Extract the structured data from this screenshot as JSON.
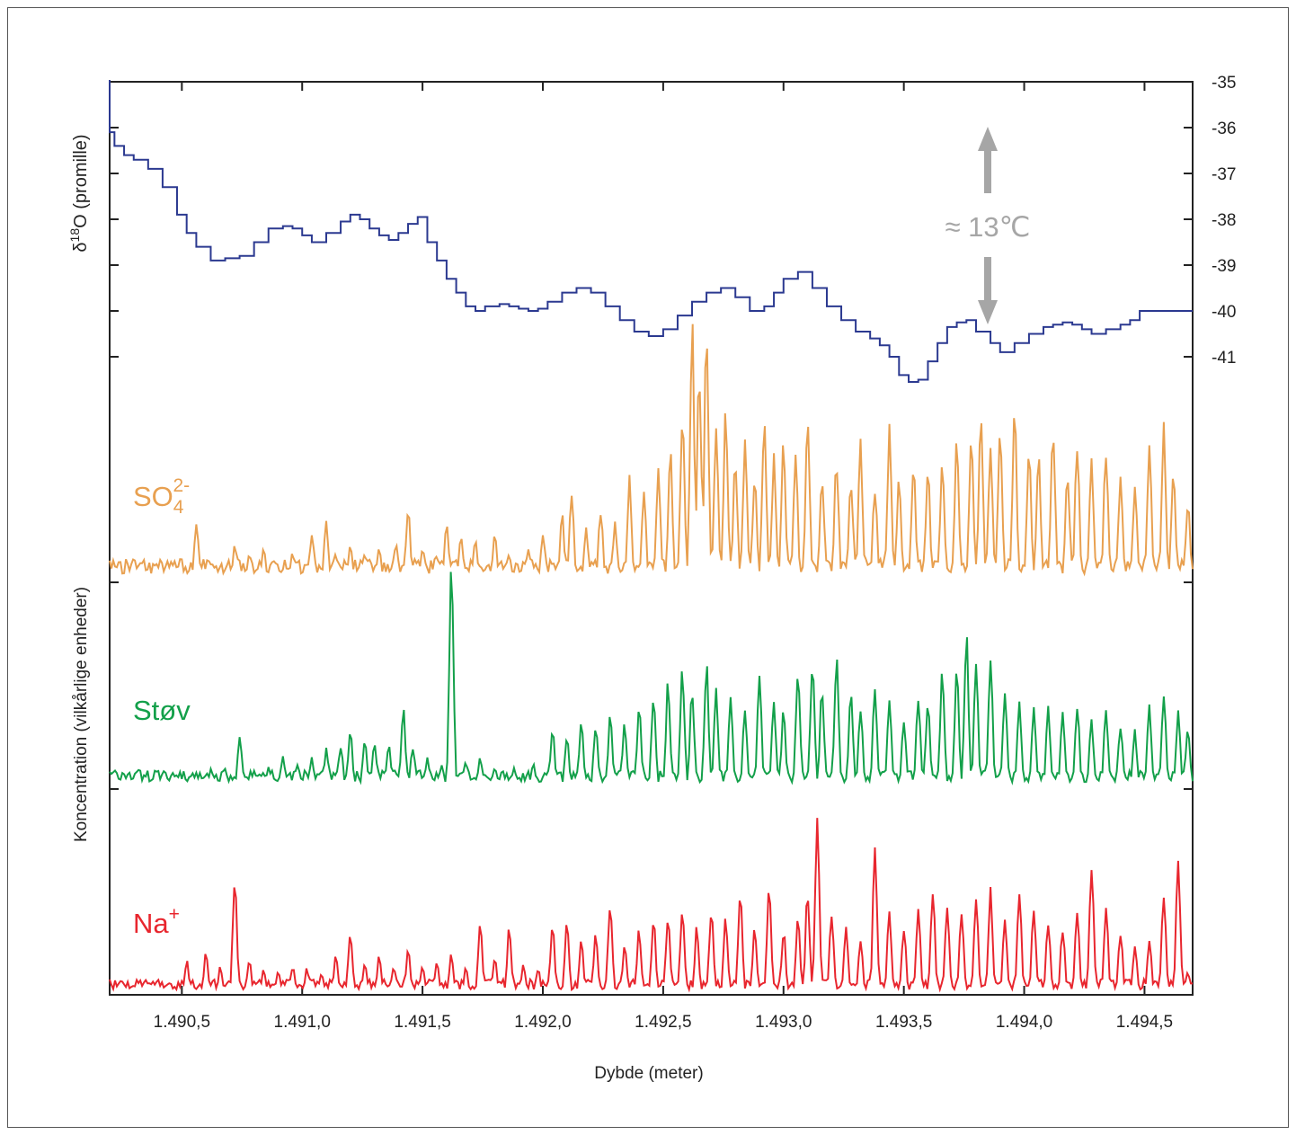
{
  "chart_data": {
    "type": "line",
    "xlabel": "Dybde (meter)",
    "xlim": [
      1490.2,
      1494.7
    ],
    "x_ticks": [
      1490.5,
      1491.0,
      1491.5,
      1492.0,
      1492.5,
      1493.0,
      1493.5,
      1494.0,
      1494.5
    ],
    "x_tick_labels": [
      "1.490,5",
      "1.491,0",
      "1.491,5",
      "1.492,0",
      "1.492,5",
      "1.493,0",
      "1.493,5",
      "1.494,0",
      "1.494,5"
    ],
    "delta_axis": {
      "label_prefix": "δ",
      "label_sup": "18",
      "label_suffix": "O (promille)",
      "ylim": [
        -41,
        -35
      ],
      "ticks": [
        -35,
        -36,
        -37,
        -38,
        -39,
        -40,
        -41
      ],
      "tick_labels": [
        "-35",
        "-36",
        "-37",
        "-38",
        "-39",
        "-40",
        "-41"
      ]
    },
    "concentration_axis": {
      "label": "Koncentration (vilkårlige enheder)"
    },
    "annotation": {
      "text": "≈ 13℃",
      "color": "#a6a6a6"
    },
    "series": [
      {
        "name": "delta18O",
        "color": "#2b3990",
        "kind": "step",
        "x": [
          1490.2,
          1490.22,
          1490.26,
          1490.3,
          1490.36,
          1490.42,
          1490.48,
          1490.52,
          1490.56,
          1490.62,
          1490.68,
          1490.74,
          1490.8,
          1490.86,
          1490.92,
          1490.96,
          1491.0,
          1491.04,
          1491.1,
          1491.16,
          1491.2,
          1491.24,
          1491.28,
          1491.32,
          1491.36,
          1491.4,
          1491.44,
          1491.48,
          1491.52,
          1491.56,
          1491.6,
          1491.64,
          1491.68,
          1491.72,
          1491.76,
          1491.82,
          1491.86,
          1491.9,
          1491.94,
          1491.98,
          1492.02,
          1492.08,
          1492.14,
          1492.2,
          1492.26,
          1492.32,
          1492.38,
          1492.44,
          1492.5,
          1492.56,
          1492.62,
          1492.68,
          1492.74,
          1492.8,
          1492.86,
          1492.92,
          1492.96,
          1493.0,
          1493.06,
          1493.12,
          1493.18,
          1493.24,
          1493.3,
          1493.36,
          1493.4,
          1493.44,
          1493.48,
          1493.52,
          1493.56,
          1493.6,
          1493.64,
          1493.68,
          1493.72,
          1493.76,
          1493.8,
          1493.86,
          1493.9,
          1493.96,
          1494.02,
          1494.08,
          1494.12,
          1494.16,
          1494.2,
          1494.24,
          1494.28,
          1494.34,
          1494.4,
          1494.44,
          1494.48,
          1494.52,
          1494.56,
          1494.6,
          1494.64
        ],
        "y": [
          -36.1,
          -36.4,
          -36.6,
          -36.7,
          -36.9,
          -37.3,
          -37.9,
          -38.3,
          -38.6,
          -38.9,
          -38.85,
          -38.8,
          -38.5,
          -38.2,
          -38.15,
          -38.2,
          -38.35,
          -38.5,
          -38.3,
          -38.05,
          -37.9,
          -38.0,
          -38.2,
          -38.35,
          -38.45,
          -38.3,
          -38.1,
          -37.95,
          -38.5,
          -38.9,
          -39.3,
          -39.6,
          -39.9,
          -40.0,
          -39.9,
          -39.85,
          -39.9,
          -39.95,
          -40.0,
          -39.95,
          -39.8,
          -39.6,
          -39.5,
          -39.6,
          -39.9,
          -40.2,
          -40.45,
          -40.55,
          -40.4,
          -40.1,
          -39.8,
          -39.6,
          -39.5,
          -39.7,
          -40.0,
          -39.9,
          -39.6,
          -39.3,
          -39.15,
          -39.5,
          -39.9,
          -40.2,
          -40.45,
          -40.6,
          -40.75,
          -41.0,
          -41.4,
          -41.55,
          -41.5,
          -41.1,
          -40.7,
          -40.35,
          -40.25,
          -40.2,
          -40.45,
          -40.7,
          -40.9,
          -40.7,
          -40.5,
          -40.35,
          -40.3,
          -40.25,
          -40.3,
          -40.4,
          -40.5,
          -40.4,
          -40.3,
          -40.2,
          -40.0,
          -40.0,
          -40.0,
          -40.0,
          -40.0
        ]
      },
      {
        "name": "SO",
        "label_sub": "4",
        "label_sup": "2-",
        "color": "#e8a050",
        "kind": "line",
        "peaks": [
          [
            1490.2,
            0.08
          ],
          [
            1490.24,
            0.03
          ],
          [
            1490.29,
            0.06
          ],
          [
            1490.33,
            0.04
          ],
          [
            1490.4,
            0.05
          ],
          [
            1490.47,
            0.04
          ],
          [
            1490.56,
            0.22
          ],
          [
            1490.64,
            0.06
          ],
          [
            1490.72,
            0.13
          ],
          [
            1490.78,
            0.1
          ],
          [
            1490.84,
            0.12
          ],
          [
            1490.88,
            0.08
          ],
          [
            1490.96,
            0.11
          ],
          [
            1491.04,
            0.18
          ],
          [
            1491.1,
            0.22
          ],
          [
            1491.14,
            0.1
          ],
          [
            1491.2,
            0.14
          ],
          [
            1491.26,
            0.1
          ],
          [
            1491.32,
            0.12
          ],
          [
            1491.39,
            0.15
          ],
          [
            1491.44,
            0.28
          ],
          [
            1491.5,
            0.12
          ],
          [
            1491.56,
            0.1
          ],
          [
            1491.6,
            0.22
          ],
          [
            1491.66,
            0.18
          ],
          [
            1491.72,
            0.15
          ],
          [
            1491.8,
            0.17
          ],
          [
            1491.86,
            0.1
          ],
          [
            1491.94,
            0.12
          ],
          [
            1492.0,
            0.18
          ],
          [
            1492.08,
            0.25
          ],
          [
            1492.12,
            0.33
          ],
          [
            1492.18,
            0.2
          ],
          [
            1492.24,
            0.27
          ],
          [
            1492.3,
            0.21
          ],
          [
            1492.36,
            0.38
          ],
          [
            1492.42,
            0.32
          ],
          [
            1492.48,
            0.42
          ],
          [
            1492.53,
            0.48
          ],
          [
            1492.58,
            0.62
          ],
          [
            1492.62,
            0.94
          ],
          [
            1492.65,
            0.78
          ],
          [
            1492.68,
            0.88
          ],
          [
            1492.72,
            0.55
          ],
          [
            1492.76,
            0.62
          ],
          [
            1492.8,
            0.46
          ],
          [
            1492.84,
            0.52
          ],
          [
            1492.88,
            0.4
          ],
          [
            1492.92,
            0.62
          ],
          [
            1492.96,
            0.45
          ],
          [
            1493.0,
            0.52
          ],
          [
            1493.05,
            0.48
          ],
          [
            1493.1,
            0.6
          ],
          [
            1493.16,
            0.4
          ],
          [
            1493.22,
            0.45
          ],
          [
            1493.28,
            0.38
          ],
          [
            1493.32,
            0.5
          ],
          [
            1493.38,
            0.35
          ],
          [
            1493.44,
            0.55
          ],
          [
            1493.48,
            0.38
          ],
          [
            1493.54,
            0.45
          ],
          [
            1493.6,
            0.4
          ],
          [
            1493.66,
            0.42
          ],
          [
            1493.72,
            0.5
          ],
          [
            1493.78,
            0.52
          ],
          [
            1493.82,
            0.6
          ],
          [
            1493.86,
            0.48
          ],
          [
            1493.9,
            0.55
          ],
          [
            1493.96,
            0.62
          ],
          [
            1494.02,
            0.5
          ],
          [
            1494.06,
            0.45
          ],
          [
            1494.12,
            0.56
          ],
          [
            1494.18,
            0.4
          ],
          [
            1494.22,
            0.52
          ],
          [
            1494.28,
            0.45
          ],
          [
            1494.34,
            0.5
          ],
          [
            1494.4,
            0.4
          ],
          [
            1494.46,
            0.35
          ],
          [
            1494.52,
            0.48
          ],
          [
            1494.58,
            0.56
          ],
          [
            1494.62,
            0.4
          ],
          [
            1494.68,
            0.3
          ]
        ]
      },
      {
        "name": "Støv",
        "color": "#13a04a",
        "kind": "line",
        "peaks": [
          [
            1490.2,
            0.08
          ],
          [
            1490.26,
            0.07
          ],
          [
            1490.32,
            0.09
          ],
          [
            1490.4,
            0.06
          ],
          [
            1490.48,
            0.07
          ],
          [
            1490.56,
            0.08
          ],
          [
            1490.62,
            0.09
          ],
          [
            1490.68,
            0.1
          ],
          [
            1490.74,
            0.25
          ],
          [
            1490.8,
            0.09
          ],
          [
            1490.86,
            0.1
          ],
          [
            1490.92,
            0.15
          ],
          [
            1490.98,
            0.12
          ],
          [
            1491.04,
            0.14
          ],
          [
            1491.1,
            0.18
          ],
          [
            1491.16,
            0.2
          ],
          [
            1491.2,
            0.26
          ],
          [
            1491.26,
            0.24
          ],
          [
            1491.3,
            0.22
          ],
          [
            1491.36,
            0.2
          ],
          [
            1491.42,
            0.38
          ],
          [
            1491.46,
            0.2
          ],
          [
            1491.52,
            0.14
          ],
          [
            1491.58,
            0.12
          ],
          [
            1491.62,
            1.0
          ],
          [
            1491.68,
            0.12
          ],
          [
            1491.74,
            0.14
          ],
          [
            1491.8,
            0.1
          ],
          [
            1491.88,
            0.1
          ],
          [
            1491.96,
            0.12
          ],
          [
            1492.04,
            0.28
          ],
          [
            1492.1,
            0.24
          ],
          [
            1492.16,
            0.32
          ],
          [
            1492.22,
            0.3
          ],
          [
            1492.28,
            0.34
          ],
          [
            1492.34,
            0.3
          ],
          [
            1492.4,
            0.38
          ],
          [
            1492.46,
            0.42
          ],
          [
            1492.52,
            0.48
          ],
          [
            1492.58,
            0.56
          ],
          [
            1492.62,
            0.48
          ],
          [
            1492.68,
            0.56
          ],
          [
            1492.72,
            0.44
          ],
          [
            1492.78,
            0.4
          ],
          [
            1492.84,
            0.36
          ],
          [
            1492.9,
            0.5
          ],
          [
            1492.96,
            0.4
          ],
          [
            1493.0,
            0.36
          ],
          [
            1493.06,
            0.56
          ],
          [
            1493.12,
            0.6
          ],
          [
            1493.16,
            0.48
          ],
          [
            1493.22,
            0.62
          ],
          [
            1493.28,
            0.44
          ],
          [
            1493.32,
            0.38
          ],
          [
            1493.38,
            0.48
          ],
          [
            1493.44,
            0.4
          ],
          [
            1493.5,
            0.32
          ],
          [
            1493.56,
            0.44
          ],
          [
            1493.6,
            0.42
          ],
          [
            1493.66,
            0.55
          ],
          [
            1493.72,
            0.6
          ],
          [
            1493.76,
            0.72
          ],
          [
            1493.8,
            0.55
          ],
          [
            1493.86,
            0.58
          ],
          [
            1493.92,
            0.46
          ],
          [
            1493.98,
            0.4
          ],
          [
            1494.04,
            0.38
          ],
          [
            1494.1,
            0.36
          ],
          [
            1494.16,
            0.34
          ],
          [
            1494.22,
            0.4
          ],
          [
            1494.28,
            0.32
          ],
          [
            1494.34,
            0.38
          ],
          [
            1494.4,
            0.3
          ],
          [
            1494.46,
            0.26
          ],
          [
            1494.52,
            0.38
          ],
          [
            1494.58,
            0.44
          ],
          [
            1494.64,
            0.35
          ],
          [
            1494.68,
            0.3
          ]
        ]
      },
      {
        "name": "Na",
        "label_sup": "+",
        "color": "#e8262e",
        "kind": "line",
        "peaks": [
          [
            1490.2,
            0.08
          ],
          [
            1490.26,
            0.06
          ],
          [
            1490.32,
            0.05
          ],
          [
            1490.38,
            0.05
          ],
          [
            1490.44,
            0.06
          ],
          [
            1490.52,
            0.18
          ],
          [
            1490.6,
            0.22
          ],
          [
            1490.66,
            0.15
          ],
          [
            1490.72,
            0.6
          ],
          [
            1490.78,
            0.18
          ],
          [
            1490.84,
            0.14
          ],
          [
            1490.9,
            0.12
          ],
          [
            1490.96,
            0.15
          ],
          [
            1491.02,
            0.14
          ],
          [
            1491.08,
            0.12
          ],
          [
            1491.14,
            0.2
          ],
          [
            1491.2,
            0.34
          ],
          [
            1491.26,
            0.16
          ],
          [
            1491.32,
            0.2
          ],
          [
            1491.38,
            0.15
          ],
          [
            1491.44,
            0.24
          ],
          [
            1491.5,
            0.16
          ],
          [
            1491.56,
            0.18
          ],
          [
            1491.62,
            0.22
          ],
          [
            1491.68,
            0.14
          ],
          [
            1491.74,
            0.38
          ],
          [
            1491.8,
            0.2
          ],
          [
            1491.86,
            0.34
          ],
          [
            1491.92,
            0.16
          ],
          [
            1491.98,
            0.14
          ],
          [
            1492.04,
            0.36
          ],
          [
            1492.1,
            0.4
          ],
          [
            1492.16,
            0.28
          ],
          [
            1492.22,
            0.32
          ],
          [
            1492.28,
            0.5
          ],
          [
            1492.34,
            0.28
          ],
          [
            1492.4,
            0.35
          ],
          [
            1492.46,
            0.4
          ],
          [
            1492.52,
            0.42
          ],
          [
            1492.58,
            0.46
          ],
          [
            1492.64,
            0.35
          ],
          [
            1492.7,
            0.46
          ],
          [
            1492.76,
            0.4
          ],
          [
            1492.82,
            0.55
          ],
          [
            1492.88,
            0.34
          ],
          [
            1492.94,
            0.58
          ],
          [
            1493.0,
            0.34
          ],
          [
            1493.06,
            0.4
          ],
          [
            1493.1,
            0.55
          ],
          [
            1493.14,
            0.96
          ],
          [
            1493.2,
            0.44
          ],
          [
            1493.26,
            0.34
          ],
          [
            1493.32,
            0.3
          ],
          [
            1493.38,
            0.75
          ],
          [
            1493.44,
            0.44
          ],
          [
            1493.5,
            0.36
          ],
          [
            1493.56,
            0.46
          ],
          [
            1493.62,
            0.58
          ],
          [
            1493.68,
            0.48
          ],
          [
            1493.74,
            0.44
          ],
          [
            1493.8,
            0.52
          ],
          [
            1493.86,
            0.56
          ],
          [
            1493.92,
            0.4
          ],
          [
            1493.98,
            0.52
          ],
          [
            1494.04,
            0.46
          ],
          [
            1494.1,
            0.4
          ],
          [
            1494.16,
            0.36
          ],
          [
            1494.22,
            0.44
          ],
          [
            1494.28,
            0.72
          ],
          [
            1494.34,
            0.46
          ],
          [
            1494.4,
            0.34
          ],
          [
            1494.46,
            0.26
          ],
          [
            1494.52,
            0.3
          ],
          [
            1494.58,
            0.54
          ],
          [
            1494.64,
            0.7
          ],
          [
            1494.68,
            0.12
          ]
        ]
      }
    ]
  }
}
